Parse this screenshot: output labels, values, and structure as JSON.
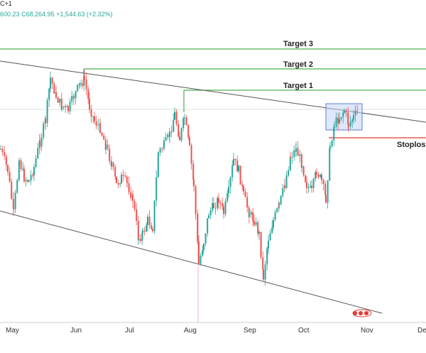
{
  "header": {
    "symbol_fragment": "C+1",
    "ohlc_fragment": "600.23  C68,264.95  +1,544.63 (+2.32%)"
  },
  "chart_data": {
    "type": "candlestick",
    "title": "",
    "xlabel": "",
    "ylabel": "",
    "x_ticks": [
      "May",
      "Jun",
      "Jul",
      "Aug",
      "Sep",
      "Oct",
      "Nov",
      "De"
    ],
    "grid": false,
    "annotations": {
      "targets": [
        {
          "label": "Target 3",
          "color": "#4caf50"
        },
        {
          "label": "Target 2",
          "color": "#4caf50"
        },
        {
          "label": "Target 1",
          "color": "#4caf50"
        }
      ],
      "stoploss": {
        "label": "Stoploss",
        "color": "#e53935"
      },
      "upper_trendline": "descending channel upper boundary",
      "lower_trendline": "descending channel lower boundary",
      "consolidation_box": "highlighted range near upper trendline"
    },
    "colors": {
      "up": "#26a69a",
      "down": "#ef5350",
      "target_line": "#4caf50",
      "stoploss_line": "#e53935",
      "trendline": "#555555",
      "box_fill": "#c5d4f5",
      "box_stroke": "#5b7fd6",
      "event_marker": "#e53935"
    }
  }
}
